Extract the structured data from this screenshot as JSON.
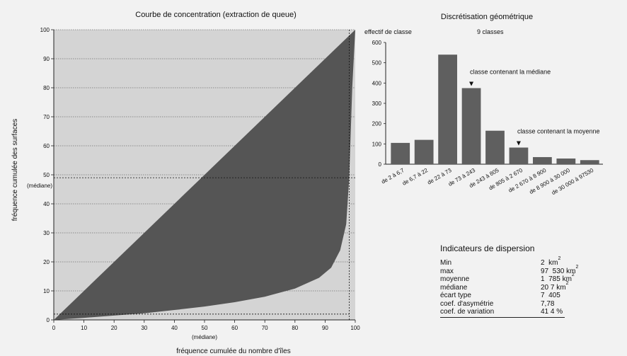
{
  "chart_data": [
    {
      "type": "area",
      "title": "Courbe de concentration (extraction de queue)",
      "xlabel": "fréquence cumulée du nombre d'îles",
      "ylabel": "fréquence cumulée des surfaces",
      "xlim": [
        0,
        100
      ],
      "ylim": [
        0,
        100
      ],
      "ticks": [
        0,
        10,
        20,
        30,
        40,
        50,
        60,
        70,
        80,
        90,
        100
      ],
      "grid": true,
      "x_marker": {
        "value": 98,
        "label": "(médiane)"
      },
      "y_marker": {
        "value": 49,
        "label": "(médiane)"
      },
      "series": [
        {
          "values": [
            {
              "x": 0,
              "y": 0
            },
            {
              "x": 10,
              "y": 0.7
            },
            {
              "x": 20,
              "y": 1.5
            },
            {
              "x": 30,
              "y": 2.3
            },
            {
              "x": 40,
              "y": 3.4
            },
            {
              "x": 50,
              "y": 4.6
            },
            {
              "x": 60,
              "y": 6.1
            },
            {
              "x": 70,
              "y": 8
            },
            {
              "x": 80,
              "y": 10.8
            },
            {
              "x": 88,
              "y": 14.5
            },
            {
              "x": 92,
              "y": 18
            },
            {
              "x": 95,
              "y": 24
            },
            {
              "x": 97,
              "y": 33
            },
            {
              "x": 98,
              "y": 49
            },
            {
              "x": 99,
              "y": 80
            },
            {
              "x": 100,
              "y": 100
            }
          ]
        }
      ]
    },
    {
      "type": "bar",
      "title": "Discrétisation  géométrique",
      "subtitle": "9  classes",
      "ylabel": "effectif de classe",
      "ylim": [
        0,
        600
      ],
      "yticks": [
        0,
        100,
        200,
        300,
        400,
        500,
        600
      ],
      "categories": [
        "de 2 à 6,7",
        "de 6,7 à 22",
        "de 22 à 73",
        "de 73 à 243",
        "de 243 à 805",
        "de 805 à 2 670",
        "de 2 670 à 8 900",
        "de 8 900 à 30 000",
        "de 30 000 à 97530"
      ],
      "values": [
        105,
        120,
        540,
        375,
        165,
        82,
        35,
        28,
        20
      ],
      "annotations": [
        {
          "text": "classe contenant la médiane",
          "category_index": 3
        },
        {
          "text": "classe contenant la moyenne",
          "category_index": 5
        }
      ]
    }
  ],
  "dispersion": {
    "title": "Indicateurs de dispersion",
    "rows": [
      {
        "label": "Min",
        "value": "2  km",
        "unit_sup": "2"
      },
      {
        "label": "max",
        "value": "97  530 km",
        "unit_sup": "2"
      },
      {
        "label": "moyenne",
        "value": "1  785 km",
        "unit_sup": "2"
      },
      {
        "label": "médiane",
        "value": "20 7 km",
        "unit_sup": "2"
      },
      {
        "label": "écart type",
        "value": "7  405",
        "unit_sup": ""
      },
      {
        "label": "coef. d'asymétrie",
        "value": "7,78",
        "unit_sup": ""
      },
      {
        "label": "coef. de variation",
        "value": "41 4 %",
        "unit_sup": ""
      }
    ]
  },
  "colors": {
    "fill": "#555555",
    "plot_bg": "#d4d4d4",
    "bar": "#5f5f5f",
    "text": "#111111"
  }
}
